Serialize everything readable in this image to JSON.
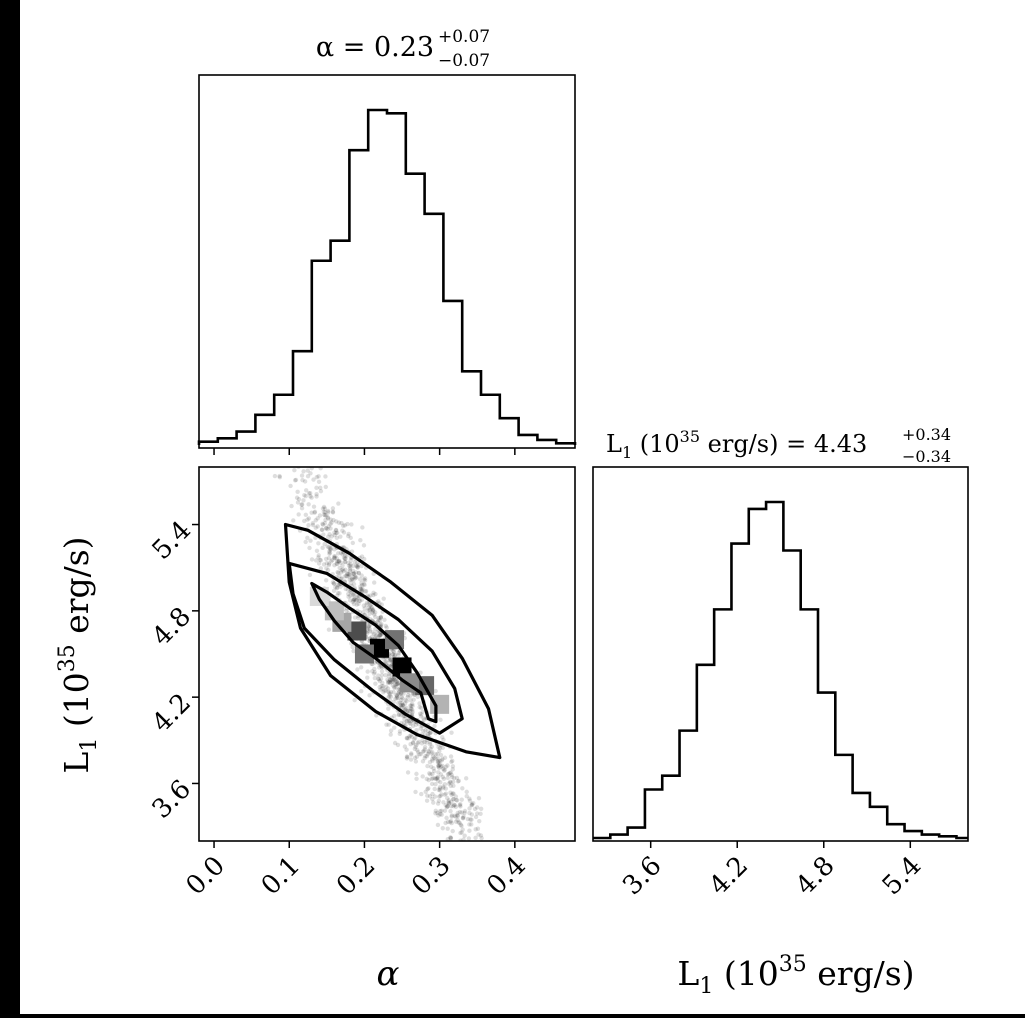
{
  "chart_data": {
    "type": "corner",
    "parameters": [
      {
        "symbol": "α",
        "axis_label": "α",
        "title": "α = 0.23",
        "title_main": "α = 0.23",
        "err_plus": "+0.07",
        "err_minus": "−0.07",
        "range": [
          -0.02,
          0.48
        ],
        "ticks": [
          0.0,
          0.1,
          0.2,
          0.3,
          0.4
        ],
        "tick_labels": [
          "0.0",
          "0.1",
          "0.2",
          "0.3",
          "0.4"
        ],
        "histogram": {
          "bin_edges": [
            -0.02,
            0.005,
            0.03,
            0.055,
            0.08,
            0.105,
            0.13,
            0.155,
            0.18,
            0.205,
            0.23,
            0.255,
            0.28,
            0.305,
            0.33,
            0.355,
            0.38,
            0.405,
            0.43,
            0.455,
            0.48
          ],
          "counts": [
            0.01,
            0.02,
            0.04,
            0.09,
            0.15,
            0.28,
            0.55,
            0.61,
            0.88,
            1.0,
            0.99,
            0.81,
            0.69,
            0.43,
            0.22,
            0.15,
            0.08,
            0.03,
            0.015,
            0.005
          ]
        }
      },
      {
        "symbol": "L1",
        "axis_label_main": "L",
        "axis_label_sub": "1",
        "axis_label_rest": " (10",
        "axis_label_sup": "35",
        "axis_label_end": " erg/s)",
        "title_main": "L",
        "title_sub": "1",
        "title_rest": " (10",
        "title_sup": "35",
        "title_end": " erg/s) = 4.43",
        "err_plus": "+0.34",
        "err_minus": "−0.34",
        "range": [
          3.2,
          5.8
        ],
        "ticks": [
          3.6,
          4.2,
          4.8,
          5.4
        ],
        "tick_labels": [
          "3.6",
          "4.2",
          "4.8",
          "5.4"
        ],
        "histogram": {
          "bin_edges": [
            3.2,
            3.32,
            3.44,
            3.56,
            3.68,
            3.8,
            3.92,
            4.04,
            4.16,
            4.28,
            4.4,
            4.52,
            4.64,
            4.76,
            4.88,
            5.0,
            5.12,
            5.24,
            5.36,
            5.48,
            5.6,
            5.72,
            5.8
          ],
          "counts": [
            0.0,
            0.01,
            0.03,
            0.14,
            0.18,
            0.31,
            0.5,
            0.66,
            0.85,
            0.95,
            0.97,
            0.83,
            0.66,
            0.42,
            0.24,
            0.13,
            0.09,
            0.04,
            0.02,
            0.01,
            0.005,
            0.0
          ]
        }
      }
    ],
    "joint": {
      "x": "α",
      "y": "L1",
      "regression": {
        "slope": -11.0,
        "intercept": 6.96
      },
      "density_cells": [
        {
          "x": 0.22,
          "y": 4.54,
          "level": 1.0
        },
        {
          "x": 0.25,
          "y": 4.41,
          "level": 1.0
        },
        {
          "x": 0.19,
          "y": 4.66,
          "level": 0.7
        },
        {
          "x": 0.28,
          "y": 4.28,
          "level": 0.6
        },
        {
          "x": 0.2,
          "y": 4.5,
          "level": 0.55
        },
        {
          "x": 0.24,
          "y": 4.6,
          "level": 0.55
        },
        {
          "x": 0.26,
          "y": 4.3,
          "level": 0.45
        },
        {
          "x": 0.17,
          "y": 4.72,
          "level": 0.35
        },
        {
          "x": 0.16,
          "y": 4.8,
          "level": 0.25
        },
        {
          "x": 0.3,
          "y": 4.15,
          "level": 0.3
        },
        {
          "x": 0.14,
          "y": 4.9,
          "level": 0.15
        }
      ],
      "contours": [
        [
          [
            0.13,
            4.99
          ],
          [
            0.15,
            4.93
          ],
          [
            0.18,
            4.82
          ],
          [
            0.215,
            4.7
          ],
          [
            0.245,
            4.56
          ],
          [
            0.27,
            4.37
          ],
          [
            0.295,
            4.14
          ],
          [
            0.295,
            4.03
          ],
          [
            0.285,
            4.05
          ],
          [
            0.275,
            4.23
          ],
          [
            0.25,
            4.32
          ],
          [
            0.215,
            4.47
          ],
          [
            0.185,
            4.58
          ],
          [
            0.16,
            4.73
          ],
          [
            0.14,
            4.88
          ],
          [
            0.13,
            4.99
          ]
        ],
        [
          [
            0.1,
            5.13
          ],
          [
            0.15,
            5.06
          ],
          [
            0.2,
            4.9
          ],
          [
            0.245,
            4.74
          ],
          [
            0.29,
            4.52
          ],
          [
            0.32,
            4.26
          ],
          [
            0.33,
            4.05
          ],
          [
            0.3,
            3.95
          ],
          [
            0.255,
            4.08
          ],
          [
            0.21,
            4.25
          ],
          [
            0.16,
            4.46
          ],
          [
            0.12,
            4.68
          ],
          [
            0.105,
            4.92
          ],
          [
            0.1,
            5.13
          ]
        ],
        [
          [
            0.095,
            5.4
          ],
          [
            0.125,
            5.36
          ],
          [
            0.18,
            5.2
          ],
          [
            0.235,
            5.0
          ],
          [
            0.29,
            4.77
          ],
          [
            0.33,
            4.47
          ],
          [
            0.365,
            4.12
          ],
          [
            0.38,
            3.78
          ],
          [
            0.335,
            3.82
          ],
          [
            0.27,
            3.94
          ],
          [
            0.215,
            4.1
          ],
          [
            0.155,
            4.35
          ],
          [
            0.115,
            4.68
          ],
          [
            0.1,
            5.0
          ],
          [
            0.095,
            5.4
          ]
        ]
      ]
    }
  }
}
